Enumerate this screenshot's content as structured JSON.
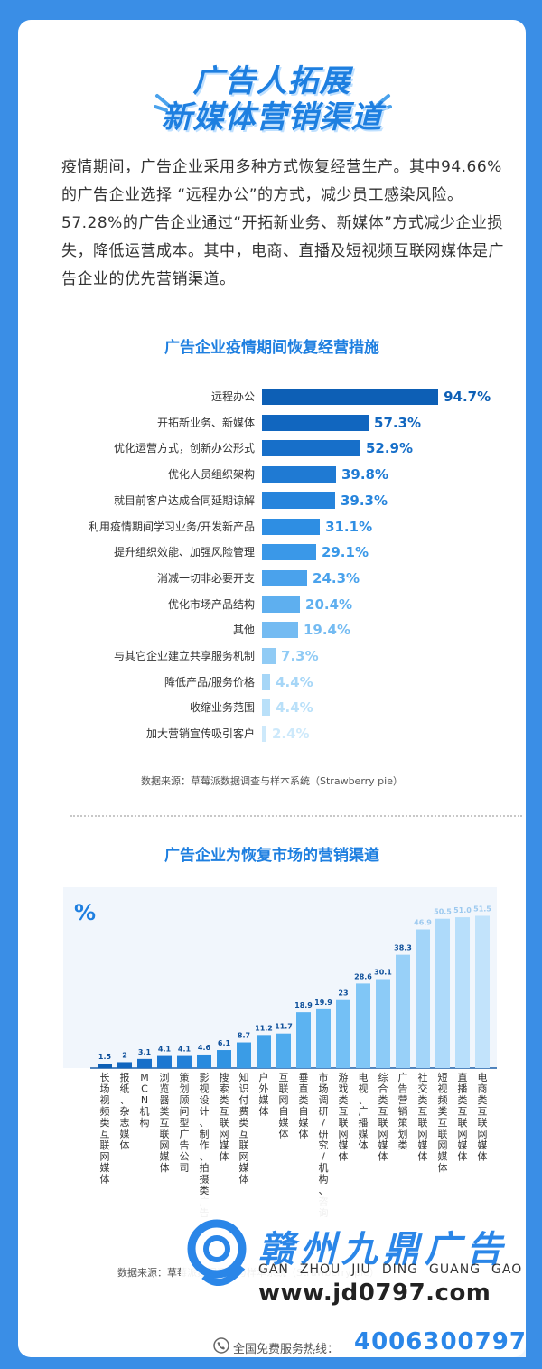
{
  "title": {
    "line1": "广告人拓展",
    "line2": "新媒体营销渠道"
  },
  "intro": "疫情期间，广告企业采用多种方式恢复经营生产。其中94.66%的广告企业选择 “远程办公”的方式，减少员工感染风险。 57.28%的广告企业通过“开拓新业务、新媒体”方式减少企业损失，降低运营成本。其中，电商、直播及短视频互联网媒体是广告企业的优先营销渠道。",
  "chart_data": [
    {
      "type": "bar",
      "orientation": "horizontal",
      "title": "广告企业疫情期间恢复经营措施",
      "categories": [
        "远程办公",
        "开拓新业务、新媒体",
        "优化运营方式，创新办公形式",
        "优化人员组织架构",
        "就目前客户达成合同延期谅解",
        "利用疫情期间学习业务/开发新产品",
        "提升组织效能、加强风险管理",
        "消减一切非必要开支",
        "优化市场产品结构",
        "其他",
        "与其它企业建立共享服务机制",
        "降低产品/服务价格",
        "收缩业务范围",
        "加大营销宣传吸引客户"
      ],
      "values": [
        94.7,
        57.3,
        52.9,
        39.8,
        39.3,
        31.1,
        29.1,
        24.3,
        20.4,
        19.4,
        7.3,
        4.4,
        4.4,
        2.4
      ],
      "value_labels": [
        "94.7%",
        "57.3%",
        "52.9%",
        "39.8%",
        "39.3%",
        "31.1%",
        "29.1%",
        "24.3%",
        "20.4%",
        "19.4%",
        "7.3%",
        "4.4%",
        "4.4%",
        "2.4%"
      ],
      "colors": [
        "#0d5fb5",
        "#1166bf",
        "#176fc9",
        "#1f7ad3",
        "#2684dc",
        "#2e8ee3",
        "#3a98e8",
        "#4aa2ec",
        "#5eafef",
        "#74bbf2",
        "#90cbf5",
        "#a6d6f7",
        "#b9e0f9",
        "#cde9fb"
      ],
      "source": "数据来源：草莓派数据调查与样本系统（Strawberry pie）"
    },
    {
      "type": "bar",
      "orientation": "vertical",
      "title": "广告企业为恢复市场的营销渠道",
      "unit": "%",
      "categories": [
        "长场视频类互联网媒体",
        "报纸、杂志媒体",
        "MCN机构",
        "浏览器类互联网媒体",
        "策划顾问型广告公司",
        "影视设计、制作、拍摄类广告公司",
        "搜索类互联网媒体",
        "知识付费类互联网媒体",
        "户外媒体",
        "互联网自媒体",
        "垂直类自媒体",
        "市场调研/研究/机构、咨询公司",
        "游戏类互联网媒体",
        "电视、广播媒体",
        "综合类互联网媒体",
        "广告营销策划类",
        "社交类互联网媒体",
        "短视频类互联网媒体",
        "直播类互联网媒体",
        "电商类互联网媒体"
      ],
      "values": [
        1.5,
        2,
        3.1,
        4.1,
        4.1,
        4.6,
        6.1,
        8.7,
        11.2,
        11.7,
        18.9,
        19.9,
        23,
        28.6,
        30.1,
        38.3,
        46.9,
        50.5,
        51.0,
        51.5
      ],
      "value_labels": [
        "1.5",
        "2",
        "3.1",
        "4.1",
        "4.1",
        "4.6",
        "6.1",
        "8.7",
        "11.2",
        "11.7",
        "18.9",
        "19.9",
        "23",
        "28.6",
        "30.1",
        "38.3",
        "46.9",
        "50.5",
        "51.0",
        "51.5"
      ],
      "colors": [
        "#0d5fb5",
        "#1166bf",
        "#176fc9",
        "#1c77d1",
        "#2280d8",
        "#288ade",
        "#3093e2",
        "#3a9ce6",
        "#45a4ea",
        "#50acee",
        "#5cb3f1",
        "#68baf3",
        "#74c0f5",
        "#80c6f6",
        "#8ccbf7",
        "#98d0f8",
        "#a3d5f9",
        "#aedafa",
        "#b8dffb",
        "#c2e3fb"
      ],
      "ylim": [
        0,
        55
      ],
      "source": "数据来源：草莓派数据调查与样本系统（Strawberry pie）"
    }
  ],
  "brand": {
    "name_cn": "赣州九鼎广告",
    "pinyin": [
      "GAN",
      "ZHOU",
      "JIU",
      "DING",
      "GUANG",
      "GAO"
    ],
    "url": "www.jd0797.com",
    "hotline_label": "全国免费服务热线：",
    "hotline": "4006300797"
  }
}
